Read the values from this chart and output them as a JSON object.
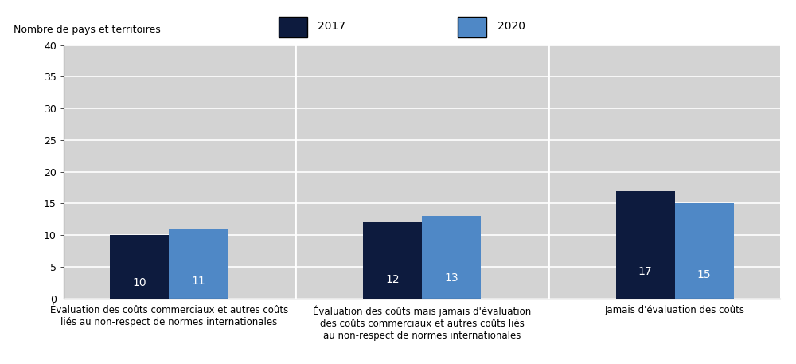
{
  "categories": [
    "Évaluation des coûts commerciaux et autres coûts\nliés au non-respect de normes internationales",
    "Évaluation des coûts mais jamais d'évaluation\ndes coûts commerciaux et autres coûts liés\nau non-respect de normes internationales",
    "Jamais d'évaluation des coûts"
  ],
  "values_2017": [
    10,
    12,
    17
  ],
  "values_2020": [
    11,
    13,
    15
  ],
  "color_2017": "#0d1b3e",
  "color_2020": "#4f88c6",
  "ylabel": "Nombre de pays et territoires",
  "ylim": [
    0,
    40
  ],
  "yticks": [
    0,
    5,
    10,
    15,
    20,
    25,
    30,
    35,
    40
  ],
  "legend_2017": "2017",
  "legend_2020": "2020",
  "plot_bg": "#d3d3d3",
  "legend_bg": "#d3d3d3",
  "figure_bg": "#ffffff",
  "bar_width": 0.28,
  "divider_color": "#ffffff",
  "grid_color": "#ffffff"
}
